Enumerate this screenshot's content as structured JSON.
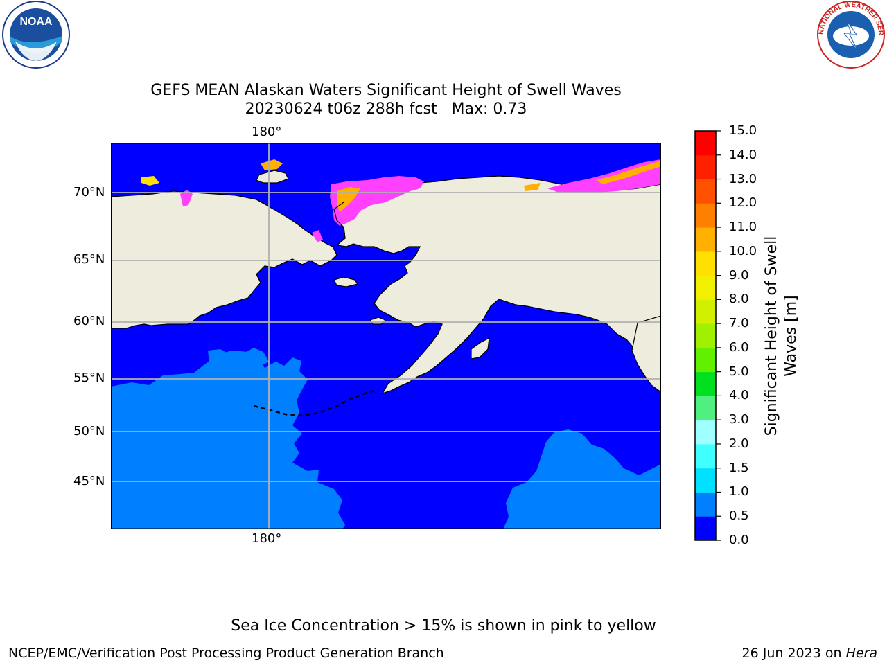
{
  "logos": {
    "left": "NOAA",
    "right": "NATIONAL WEATHER SERVICE"
  },
  "title": {
    "line1": "GEFS MEAN Alaskan Waters Significant Height of Swell Waves",
    "line2": "20230624 t06z 288h fcst   Max: 0.73"
  },
  "map": {
    "lon_label_top": "180°",
    "lon_label_bottom": "180°",
    "lat_labels": [
      "70°N",
      "65°N",
      "60°N",
      "55°N",
      "50°N",
      "45°N"
    ],
    "land_color": "#eeecdc",
    "coast_color": "#000000",
    "grid_color": "#b0b0b0"
  },
  "colorbar": {
    "label": "Significant Height of Swell Waves [m]",
    "ticks": [
      "0.0",
      "0.5",
      "1.0",
      "1.5",
      "2.0",
      "3.0",
      "4.0",
      "5.0",
      "6.0",
      "7.0",
      "8.0",
      "9.0",
      "10.0",
      "11.0",
      "12.0",
      "13.0",
      "14.0",
      "15.0"
    ],
    "colors": [
      "#0000ff",
      "#0080ff",
      "#00e0ff",
      "#40ffff",
      "#a0ffff",
      "#50f080",
      "#00e020",
      "#60f000",
      "#a0f000",
      "#d0f000",
      "#f0f000",
      "#ffe000",
      "#ffb000",
      "#ff8000",
      "#ff5000",
      "#ff2000",
      "#ff0000"
    ]
  },
  "ice_note": "Sea Ice Concentration > 15% is shown in pink to yellow",
  "footer": {
    "left": "NCEP/EMC/Verification Post Processing Product Generation Branch",
    "right_prefix": "26 Jun 2023 on ",
    "right_machine": "Hera"
  }
}
